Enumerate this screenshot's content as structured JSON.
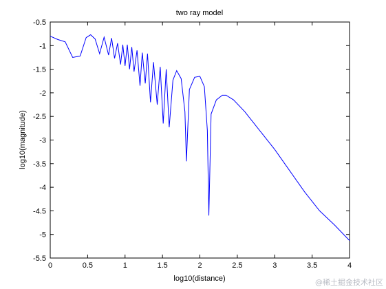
{
  "watermark": "@稀土掘金技术社区",
  "chart_data": {
    "type": "line",
    "title": "two ray model",
    "xlabel": "log10(distance)",
    "ylabel": "log10(magnitude)",
    "xlim": [
      0,
      4
    ],
    "ylim": [
      -5.5,
      -0.5
    ],
    "xticks": [
      "0",
      "0.5",
      "1",
      "1.5",
      "2",
      "2.5",
      "3",
      "3.5",
      "4"
    ],
    "yticks": [
      "-0.5",
      "-1",
      "-1.5",
      "-2",
      "-2.5",
      "-3",
      "-3.5",
      "-4",
      "-4.5",
      "-5",
      "-5.5"
    ],
    "grid": false,
    "line_color": "#0000ff",
    "series": [
      {
        "x": [
          0.0,
          0.1,
          0.2,
          0.3,
          0.4,
          0.48,
          0.54,
          0.6,
          0.66,
          0.72,
          0.78,
          0.82,
          0.86,
          0.9,
          0.94,
          0.97,
          1.0,
          1.03,
          1.06,
          1.09,
          1.12,
          1.16,
          1.2,
          1.23,
          1.27,
          1.3,
          1.34,
          1.38,
          1.43,
          1.47,
          1.51,
          1.55,
          1.59,
          1.64,
          1.69,
          1.75,
          1.8,
          1.82,
          1.86,
          1.93,
          2.0,
          2.06,
          2.1,
          2.12,
          2.15,
          2.22,
          2.3,
          2.35,
          2.45,
          2.6,
          2.8,
          3.0,
          3.2,
          3.4,
          3.6,
          3.8,
          4.0
        ],
        "y": [
          -0.8,
          -0.87,
          -0.92,
          -1.25,
          -1.22,
          -0.83,
          -0.77,
          -0.86,
          -1.17,
          -0.82,
          -1.2,
          -0.84,
          -1.27,
          -0.95,
          -1.4,
          -0.98,
          -1.43,
          -0.98,
          -1.5,
          -1.03,
          -1.55,
          -1.1,
          -1.85,
          -1.15,
          -1.8,
          -1.17,
          -2.2,
          -1.35,
          -2.25,
          -1.45,
          -2.65,
          -1.5,
          -2.73,
          -1.73,
          -1.53,
          -1.7,
          -2.4,
          -3.45,
          -1.93,
          -1.67,
          -1.65,
          -1.87,
          -2.8,
          -4.6,
          -2.45,
          -2.15,
          -2.05,
          -2.05,
          -2.15,
          -2.4,
          -2.8,
          -3.2,
          -3.65,
          -4.1,
          -4.5,
          -4.8,
          -5.13
        ]
      }
    ]
  }
}
